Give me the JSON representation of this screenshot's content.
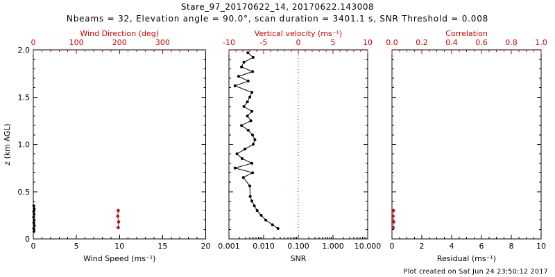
{
  "header": {
    "title": "Stare_97_20170622_14, 20170622.143008",
    "subtitle": "Nbeams = 32, Elevation angle = 90.0°, scan duration = 3401.1 s, SNR Threshold = 0.008"
  },
  "footer": {
    "created_text": "Plot created on Sat Jun 24 23:50:12 2017"
  },
  "colors": {
    "axis_black": "#000000",
    "axis_red": "#cc0000",
    "marker_red": "#b22222",
    "background": "#ffffff"
  },
  "chart_data": [
    {
      "id": "wind",
      "type": "scatter",
      "xlabel": "Wind Speed (ms⁻¹)",
      "xlim": [
        0,
        20
      ],
      "xticks": [
        0,
        5,
        10,
        15,
        20
      ],
      "xtick_labels": [
        "0",
        "5",
        "10",
        "15",
        "20"
      ],
      "xminor": 1,
      "top": {
        "label": "Wind Direction (deg)",
        "lim": [
          0,
          400
        ],
        "ticks": [
          0,
          100,
          200,
          300
        ],
        "tick_labels": [
          "0",
          "100",
          "200",
          "300"
        ],
        "minor": 20
      },
      "ylabel": "z (km AGL)",
      "ylim": [
        0,
        2.0
      ],
      "yticks": [
        0,
        0.5,
        1.0,
        1.5,
        2.0
      ],
      "ytick_labels": [
        "0",
        "0.5",
        "1.0",
        "1.5",
        "2.0"
      ],
      "yminor": 0.1,
      "series": [
        {
          "name": "wind-speed",
          "axis": "bottom",
          "color": "#000000",
          "line": true,
          "marker": true,
          "r": 2,
          "points": [
            [
              0.08,
              0.08
            ],
            [
              0.05,
              0.11
            ],
            [
              0.12,
              0.14
            ],
            [
              0.06,
              0.17
            ],
            [
              0.1,
              0.2
            ],
            [
              0.04,
              0.23
            ],
            [
              0.09,
              0.26
            ],
            [
              0.05,
              0.29
            ],
            [
              0.11,
              0.32
            ],
            [
              0.06,
              0.35
            ]
          ]
        },
        {
          "name": "wind-direction",
          "axis": "top",
          "color": "#b22222",
          "line": true,
          "marker": true,
          "r": 2.4,
          "points": [
            [
              197,
              0.12
            ],
            [
              198,
              0.18
            ],
            [
              196,
              0.24
            ],
            [
              197,
              0.3
            ]
          ]
        }
      ]
    },
    {
      "id": "snr",
      "type": "line",
      "xlabel": "SNR",
      "xscale": "log",
      "xlim": [
        0.001,
        10.0
      ],
      "xticks": [
        0.001,
        0.01,
        0.1,
        1.0,
        10.0
      ],
      "xtick_labels": [
        "0.001",
        "0.010",
        "0.100",
        "1.000",
        "10.000"
      ],
      "top": {
        "label": "Vertical velocity (ms⁻¹)",
        "lim": [
          -10,
          10
        ],
        "ticks": [
          -10,
          -5,
          0,
          5,
          10
        ],
        "tick_labels": [
          "-10",
          "-5",
          "0",
          "5",
          "10"
        ],
        "minor": 1
      },
      "ylabel": "",
      "ylim": [
        0,
        2.0
      ],
      "yticks": [
        0,
        0.5,
        1.0,
        1.5,
        2.0
      ],
      "ytick_labels": null,
      "yminor": 0.1,
      "refline": {
        "axis": "top",
        "x": 0,
        "color": "#cc0000",
        "style": "dotted"
      },
      "series": [
        {
          "name": "snr-profile",
          "axis": "bottom",
          "color": "#000000",
          "line": true,
          "marker": true,
          "r": 2,
          "points": [
            [
              0.0035,
              1.97
            ],
            [
              0.005,
              1.92
            ],
            [
              0.0027,
              1.87
            ],
            [
              0.0023,
              1.82
            ],
            [
              0.0048,
              1.77
            ],
            [
              0.0019,
              1.72
            ],
            [
              0.0036,
              1.67
            ],
            [
              0.0015,
              1.62
            ],
            [
              0.0046,
              1.55
            ],
            [
              0.004,
              1.5
            ],
            [
              0.0034,
              1.45
            ],
            [
              0.0027,
              1.4
            ],
            [
              0.0046,
              1.35
            ],
            [
              0.0034,
              1.3
            ],
            [
              0.0043,
              1.25
            ],
            [
              0.0023,
              1.2
            ],
            [
              0.0036,
              1.15
            ],
            [
              0.0048,
              1.1
            ],
            [
              0.0056,
              1.05
            ],
            [
              0.005,
              1.0
            ],
            [
              0.0029,
              0.95
            ],
            [
              0.0017,
              0.9
            ],
            [
              0.0024,
              0.85
            ],
            [
              0.0046,
              0.8
            ],
            [
              0.0015,
              0.75
            ],
            [
              0.0048,
              0.7
            ],
            [
              0.0026,
              0.65
            ],
            [
              0.004,
              0.56
            ],
            [
              0.0041,
              0.45
            ],
            [
              0.0046,
              0.4
            ],
            [
              0.0054,
              0.35
            ],
            [
              0.0065,
              0.3
            ],
            [
              0.0085,
              0.25
            ],
            [
              0.0115,
              0.2
            ],
            [
              0.018,
              0.15
            ],
            [
              0.026,
              0.11
            ]
          ]
        }
      ]
    },
    {
      "id": "residual",
      "type": "scatter",
      "xlabel": "Residual (ms⁻¹)",
      "xlim": [
        0,
        10
      ],
      "xticks": [
        0,
        2,
        4,
        6,
        8,
        10
      ],
      "xtick_labels": [
        "0",
        "2",
        "4",
        "6",
        "8",
        "10"
      ],
      "xminor": 0.5,
      "top": {
        "label": "Correlation",
        "lim": [
          0,
          1
        ],
        "ticks": [
          0,
          0.2,
          0.4,
          0.6,
          0.8,
          1.0
        ],
        "tick_labels": [
          "0.0",
          "0.2",
          "0.4",
          "0.6",
          "0.8",
          "1.0"
        ],
        "minor": 0.05
      },
      "ylabel": "",
      "ylim": [
        0,
        2.0
      ],
      "yticks": [
        0,
        0.5,
        1.0,
        1.5,
        2.0
      ],
      "ytick_labels": null,
      "yminor": 0.1,
      "series": [
        {
          "name": "correlation",
          "axis": "top",
          "color": "#b22222",
          "line": true,
          "marker": true,
          "r": 2.4,
          "points": [
            [
              0.008,
              0.12
            ],
            [
              0.012,
              0.18
            ],
            [
              0.007,
              0.24
            ],
            [
              0.01,
              0.3
            ]
          ]
        }
      ]
    }
  ]
}
